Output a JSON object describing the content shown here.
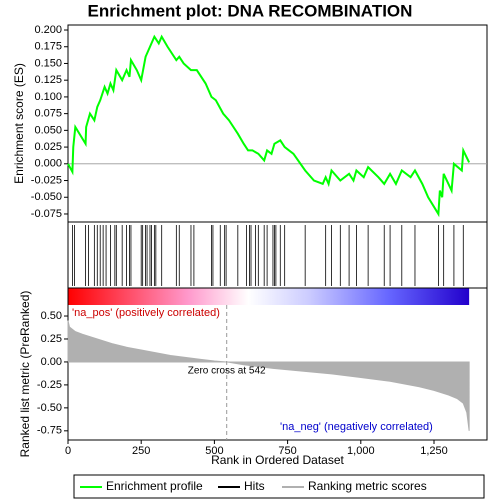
{
  "chart_data": [
    {
      "type": "line",
      "title": "Enrichment plot: DNA RECOMBINATION",
      "ylabel": "Enrichment score (ES)",
      "xlim": [
        0,
        1431
      ],
      "ylim": [
        -0.087,
        0.2075
      ],
      "yticks": [
        {
          "value": 0.2,
          "label": "0.200"
        },
        {
          "value": 0.175,
          "label": "0.175"
        },
        {
          "value": 0.15,
          "label": "0.150"
        },
        {
          "value": 0.125,
          "label": "0.125"
        },
        {
          "value": 0.1,
          "label": "0.100"
        },
        {
          "value": 0.075,
          "label": "0.075"
        },
        {
          "value": 0.05,
          "label": "0.050"
        },
        {
          "value": 0.025,
          "label": "0.025"
        },
        {
          "value": 0,
          "label": "0.000"
        },
        {
          "value": -0.025,
          "label": "-0.025"
        },
        {
          "value": -0.05,
          "label": "-0.050"
        },
        {
          "value": -0.075,
          "label": "-0.075"
        }
      ],
      "series": [
        {
          "name": "Enrichment profile",
          "color": "#00ff00",
          "x": [
            0,
            15,
            18,
            25,
            60,
            62,
            75,
            90,
            100,
            110,
            125,
            135,
            145,
            155,
            165,
            185,
            200,
            210,
            215,
            235,
            250,
            265,
            280,
            295,
            310,
            320,
            340,
            370,
            380,
            395,
            420,
            440,
            470,
            490,
            505,
            530,
            550,
            580,
            600,
            615,
            630,
            650,
            670,
            680,
            695,
            705,
            725,
            740,
            770,
            810,
            840,
            870,
            880,
            890,
            900,
            930,
            960,
            975,
            985,
            1010,
            1025,
            1060,
            1080,
            1100,
            1120,
            1140,
            1170,
            1185,
            1210,
            1230,
            1265,
            1270,
            1278,
            1283,
            1310,
            1318,
            1345,
            1350,
            1370
          ],
          "values": [
            0,
            -0.012,
            0.025,
            0.055,
            0.03,
            0.055,
            0.075,
            0.065,
            0.085,
            0.095,
            0.115,
            0.105,
            0.12,
            0.11,
            0.14,
            0.125,
            0.14,
            0.13,
            0.155,
            0.14,
            0.125,
            0.16,
            0.175,
            0.19,
            0.18,
            0.19,
            0.175,
            0.155,
            0.16,
            0.15,
            0.14,
            0.14,
            0.12,
            0.1,
            0.095,
            0.075,
            0.065,
            0.045,
            0.03,
            0.02,
            0.02,
            0.015,
            0.005,
            0.02,
            0.015,
            0.03,
            0.035,
            0.025,
            0.015,
            -0.01,
            -0.025,
            -0.03,
            -0.02,
            -0.03,
            -0.01,
            -0.025,
            -0.015,
            -0.025,
            -0.01,
            -0.02,
            -0.005,
            -0.02,
            -0.03,
            -0.015,
            -0.03,
            -0.01,
            -0.02,
            -0.01,
            -0.03,
            -0.05,
            -0.075,
            -0.04,
            -0.05,
            -0.015,
            -0.04,
            0,
            -0.01,
            0.02,
            0.002
          ]
        }
      ]
    },
    {
      "type": "hits",
      "name": "Hits",
      "color": "#000000",
      "xlim": [
        0,
        1431
      ],
      "x": [
        15,
        22,
        60,
        70,
        90,
        100,
        110,
        120,
        130,
        145,
        160,
        165,
        185,
        200,
        210,
        215,
        250,
        255,
        265,
        270,
        280,
        285,
        295,
        300,
        320,
        370,
        380,
        420,
        430,
        490,
        495,
        520,
        535,
        540,
        580,
        610,
        620,
        625,
        640,
        650,
        670,
        680,
        700,
        705,
        710,
        725,
        740,
        810,
        880,
        900,
        930,
        960,
        985,
        1025,
        1080,
        1100,
        1140,
        1185,
        1265,
        1283,
        1318,
        1350
      ]
    },
    {
      "type": "area",
      "xlabel": "Rank in Ordered Dataset",
      "ylabel": "Ranked list metric (PreRanked)",
      "xlim": [
        0,
        1431
      ],
      "ylim": [
        -0.85,
        0.62
      ],
      "xticks": [
        0,
        250,
        500,
        750,
        {
          "value": 1000,
          "label": "1,000"
        },
        {
          "value": 1250,
          "label": "1,250"
        }
      ],
      "yticks": [
        {
          "value": 0.5,
          "label": "0.50"
        },
        {
          "value": 0.25,
          "label": "0.25"
        },
        {
          "value": 0,
          "label": "0.00"
        },
        {
          "value": -0.25,
          "label": "-0.25"
        },
        {
          "value": -0.5,
          "label": "-0.50"
        },
        {
          "value": -0.75,
          "label": "-0.75"
        }
      ],
      "pos_label": "'na_pos' (positively correlated)",
      "neg_label": "'na_neg' (negatively correlated)",
      "zero_cross": 542,
      "zero_cross_label": "Zero cross at 542",
      "series": [
        {
          "name": "Ranking metric scores",
          "color": "#b0b0b0",
          "x": [
            0,
            5,
            25,
            50,
            100,
            150,
            200,
            250,
            300,
            350,
            400,
            450,
            500,
            542,
            600,
            700,
            800,
            900,
            1000,
            1100,
            1200,
            1250,
            1300,
            1330,
            1350,
            1362,
            1370
          ],
          "values": [
            0.45,
            0.38,
            0.33,
            0.3,
            0.25,
            0.2,
            0.16,
            0.13,
            0.1,
            0.07,
            0.05,
            0.03,
            0.01,
            0,
            -0.03,
            -0.07,
            -0.1,
            -0.13,
            -0.17,
            -0.21,
            -0.27,
            -0.31,
            -0.36,
            -0.4,
            -0.45,
            -0.55,
            -0.75
          ]
        }
      ]
    }
  ]
}
